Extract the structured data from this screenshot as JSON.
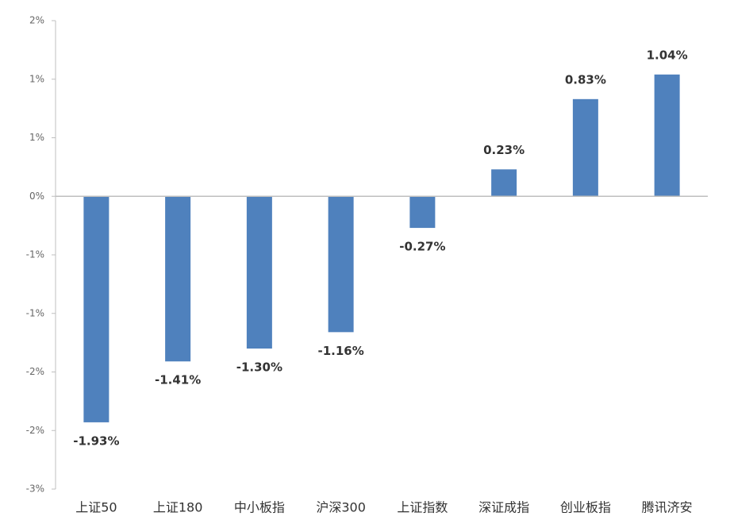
{
  "chart_data": {
    "type": "bar",
    "categories": [
      "上证50",
      "上证180",
      "中小板指",
      "沪深300",
      "上证指数",
      "深证成指",
      "创业板指",
      "腾讯济安"
    ],
    "values": [
      -1.93,
      -1.41,
      -1.3,
      -1.16,
      -0.27,
      0.23,
      0.83,
      1.04
    ],
    "value_labels": [
      "-1.93%",
      "-1.41%",
      "-1.30%",
      "-1.16%",
      "-0.27%",
      "0.23%",
      "0.83%",
      "1.04%"
    ],
    "color": "#4f81bd",
    "ylim": [
      -2.5,
      1.5
    ],
    "yticks": [
      {
        "value": 1.5,
        "label": "2%"
      },
      {
        "value": 1,
        "label": "1%"
      },
      {
        "value": 0.5,
        "label": "1%"
      },
      {
        "value": 0,
        "label": "0%"
      },
      {
        "value": -0.5,
        "label": "-1%"
      },
      {
        "value": -1,
        "label": "-1%"
      },
      {
        "value": -1.5,
        "label": "-2%"
      },
      {
        "value": -2,
        "label": "-2%"
      },
      {
        "value": -2.5,
        "label": "-3%"
      }
    ],
    "grid": false
  }
}
